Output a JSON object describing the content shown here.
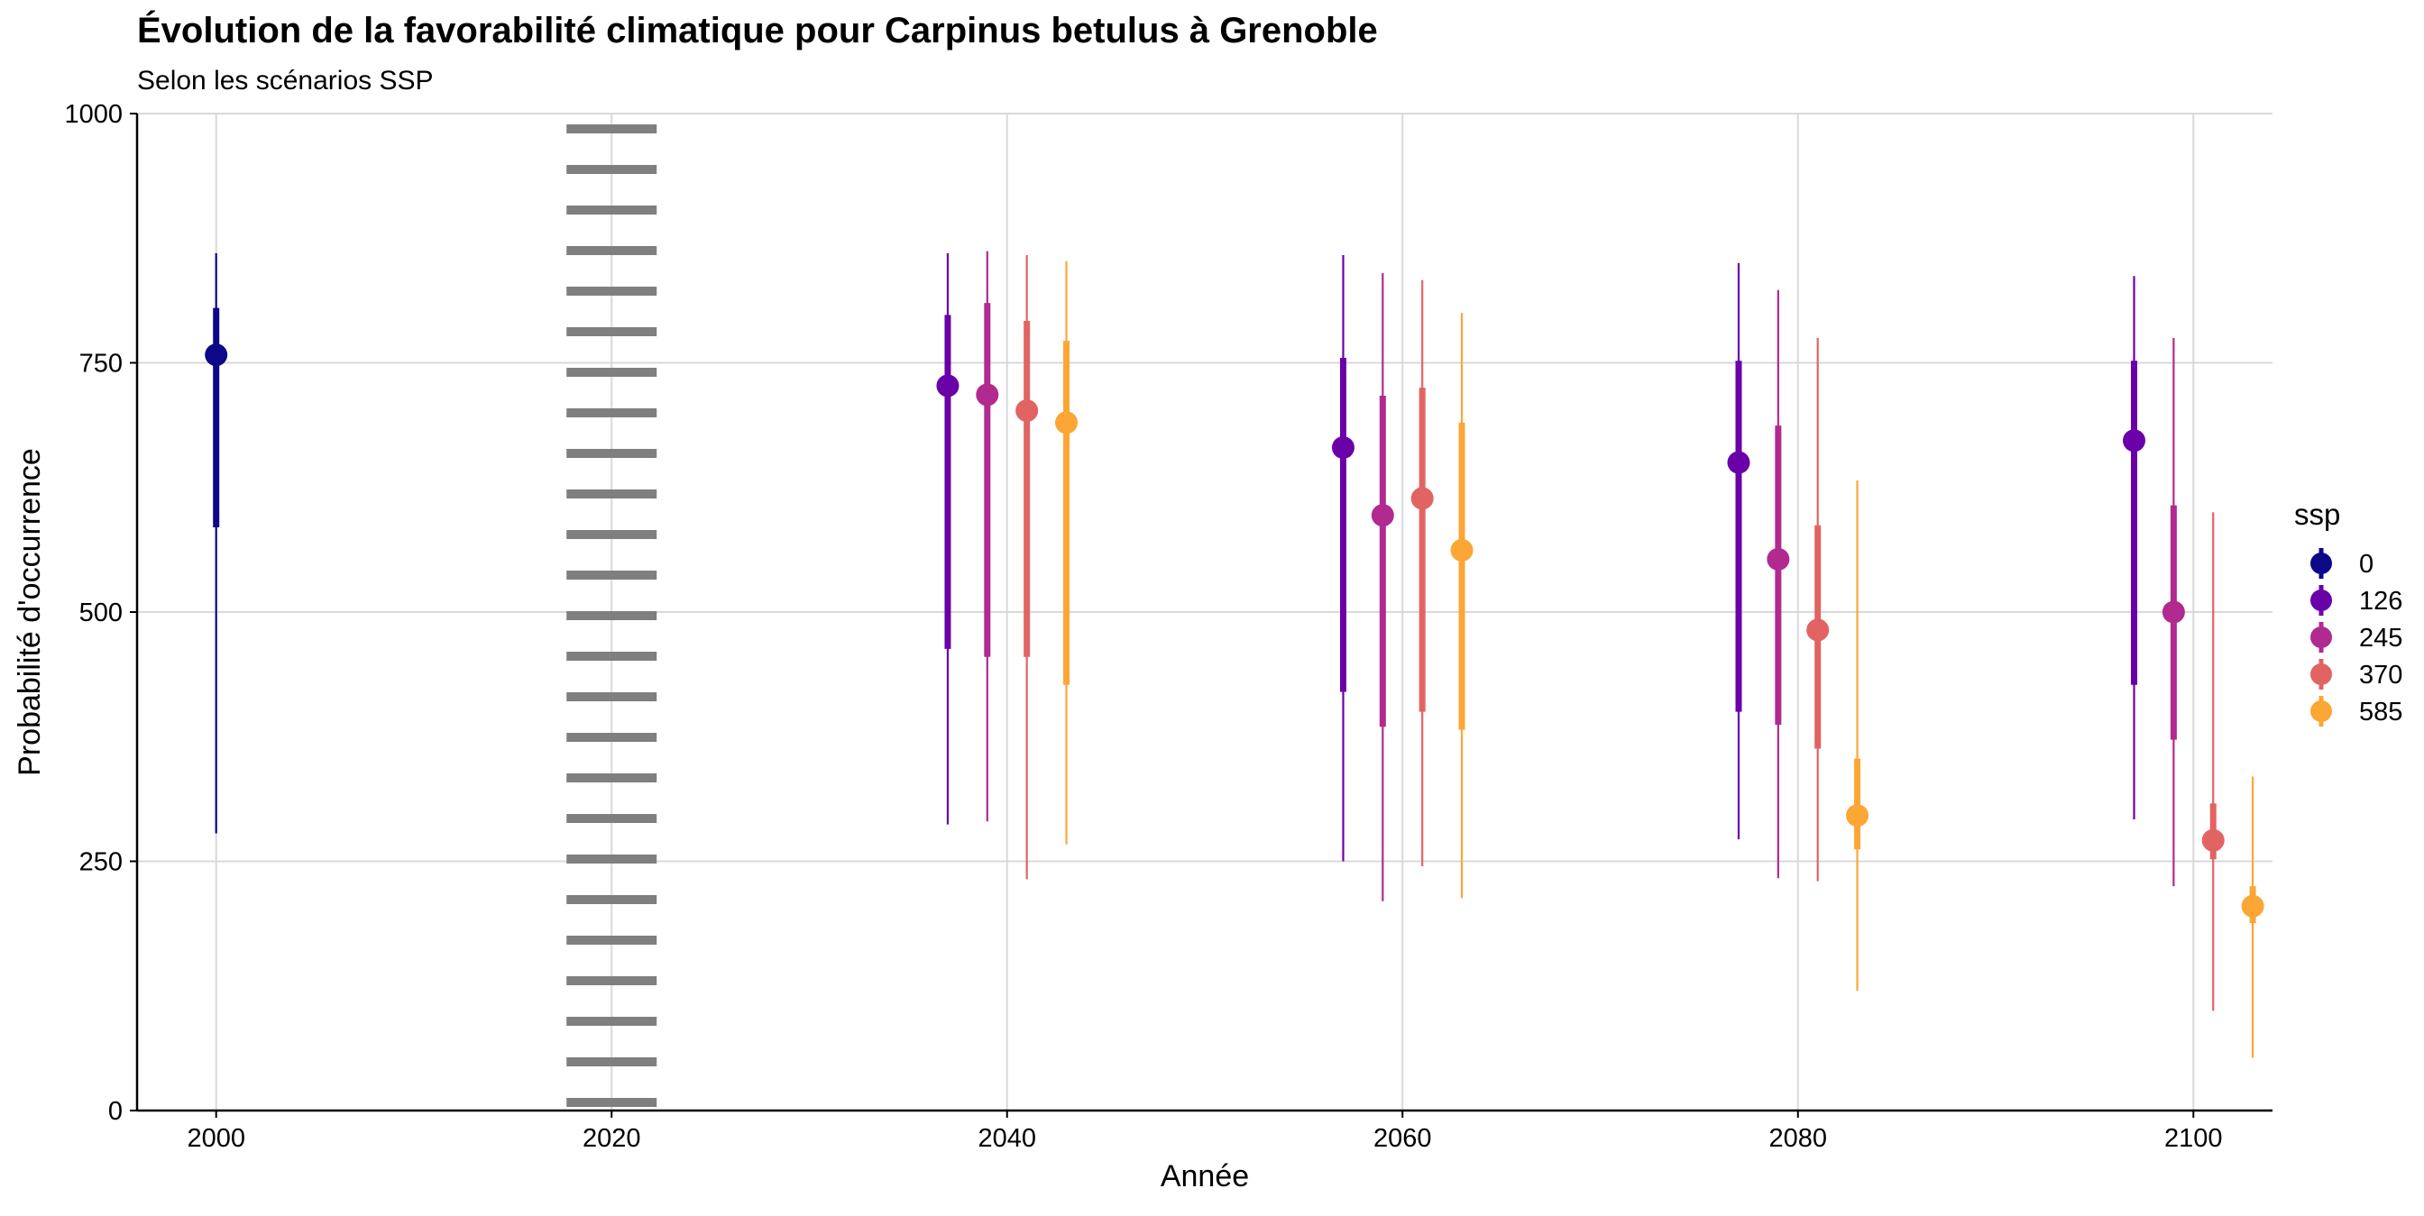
{
  "chart_data": {
    "type": "scatter",
    "title": "Évolution de la favorabilité climatique pour Carpinus betulus à Grenoble",
    "subtitle": "Selon les scénarios SSP",
    "xlabel": "Année",
    "ylabel": "Probabilité d'occurrence",
    "xlim": [
      1996,
      2104
    ],
    "ylim": [
      0,
      1000
    ],
    "x_ticks": [
      "2000",
      "2020",
      "2040",
      "2060",
      "2080",
      "2100"
    ],
    "y_ticks": [
      "0",
      "250",
      "500",
      "750",
      "1000"
    ],
    "grid": true,
    "reference_line": {
      "x": 2020,
      "style": "dotted"
    },
    "legend": {
      "title": "ssp",
      "position": "right"
    },
    "series": [
      {
        "name": "0",
        "color": "#0d0887",
        "points": [
          {
            "x": 2000,
            "y": 758,
            "inner": [
              585,
              805
            ],
            "outer": [
              278,
              860
            ]
          }
        ]
      },
      {
        "name": "126",
        "color": "#6a00a8",
        "points": [
          {
            "x": 2037,
            "y": 727,
            "inner": [
              463,
              798
            ],
            "outer": [
              287,
              860
            ]
          },
          {
            "x": 2057,
            "y": 665,
            "inner": [
              420,
              755
            ],
            "outer": [
              250,
              858
            ]
          },
          {
            "x": 2077,
            "y": 650,
            "inner": [
              400,
              752
            ],
            "outer": [
              272,
              850
            ]
          },
          {
            "x": 2097,
            "y": 672,
            "inner": [
              427,
              752
            ],
            "outer": [
              292,
              837
            ]
          }
        ]
      },
      {
        "name": "245",
        "color": "#b12a90",
        "points": [
          {
            "x": 2039,
            "y": 718,
            "inner": [
              455,
              810
            ],
            "outer": [
              290,
              862
            ]
          },
          {
            "x": 2059,
            "y": 597,
            "inner": [
              385,
              717
            ],
            "outer": [
              210,
              840
            ]
          },
          {
            "x": 2079,
            "y": 553,
            "inner": [
              387,
              687
            ],
            "outer": [
              233,
              823
            ]
          },
          {
            "x": 2099,
            "y": 500,
            "inner": [
              372,
              607
            ],
            "outer": [
              225,
              775
            ]
          }
        ]
      },
      {
        "name": "370",
        "color": "#e16462",
        "points": [
          {
            "x": 2041,
            "y": 702,
            "inner": [
              455,
              792
            ],
            "outer": [
              232,
              858
            ]
          },
          {
            "x": 2061,
            "y": 614,
            "inner": [
              400,
              725
            ],
            "outer": [
              245,
              833
            ]
          },
          {
            "x": 2081,
            "y": 482,
            "inner": [
              363,
              587
            ],
            "outer": [
              230,
              775
            ]
          },
          {
            "x": 2101,
            "y": 271,
            "inner": [
              252,
              308
            ],
            "outer": [
              100,
              600
            ]
          }
        ]
      },
      {
        "name": "585",
        "color": "#fca636",
        "points": [
          {
            "x": 2043,
            "y": 690,
            "inner": [
              427,
              772
            ],
            "outer": [
              267,
              852
            ]
          },
          {
            "x": 2063,
            "y": 562,
            "inner": [
              382,
              690
            ],
            "outer": [
              213,
              800
            ]
          },
          {
            "x": 2083,
            "y": 296,
            "inner": [
              262,
              353
            ],
            "outer": [
              120,
              632
            ]
          },
          {
            "x": 2103,
            "y": 205,
            "inner": [
              188,
              225
            ],
            "outer": [
              53,
              335
            ]
          }
        ]
      }
    ]
  }
}
